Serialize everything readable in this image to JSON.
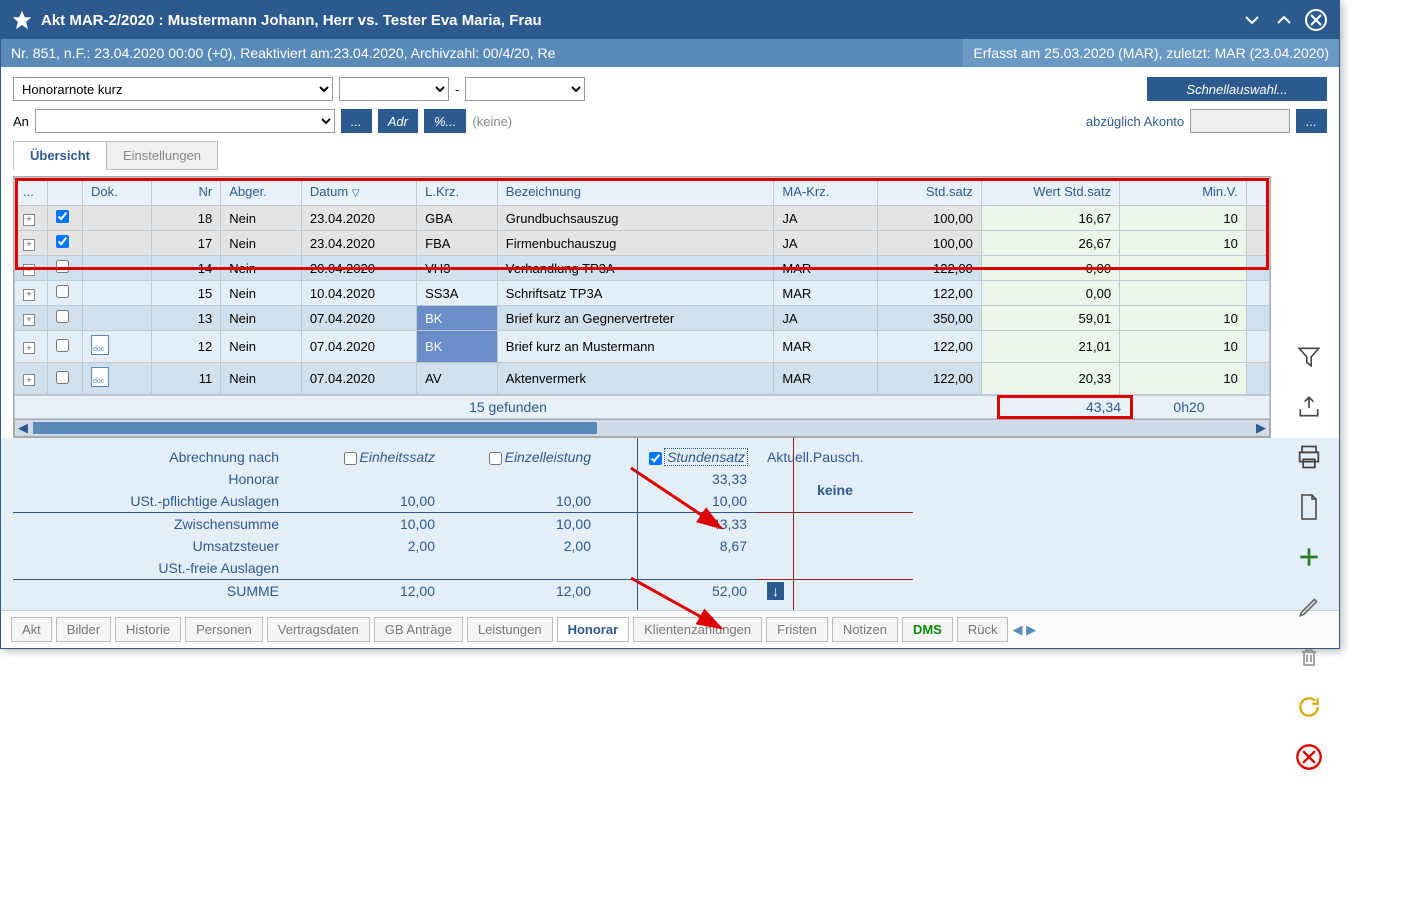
{
  "title": "Akt MAR-2/2020 : Mustermann Johann, Herr vs. Tester Eva Maria, Frau",
  "info_left": "Nr. 851, n.F.: 23.04.2020 00:00 (+0), Reaktiviert am:23.04.2020, Archivzahl: 00/4/20, Re",
  "info_right": "Erfasst am 25.03.2020 (MAR), zuletzt: MAR (23.04.2020)",
  "toolbar": {
    "type_value": "Honorarnote kurz",
    "an_label": "An",
    "dots_btn": "...",
    "adr_btn": "Adr",
    "pct_btn": "%...",
    "none_label": "(keine)",
    "akonto_label": "abzüglich Akonto",
    "schnell_btn": "Schnellauswahl..."
  },
  "tabs": {
    "overview": "Übersicht",
    "settings": "Einstellungen"
  },
  "columns": {
    "dok": "Dok.",
    "nr": "Nr",
    "abger": "Abger.",
    "datum": "Datum",
    "lkrz": "L.Krz.",
    "bez": "Bezeichnung",
    "makrz": "MA-Krz.",
    "std": "Std.satz",
    "wert": "Wert Std.satz",
    "minv": "Min.V."
  },
  "rows": [
    {
      "chk": true,
      "nr": "18",
      "abger": "Nein",
      "datum": "23.04.2020",
      "lkrz": "GBA",
      "bez": "Grundbuchsauszug",
      "makrz": "JA",
      "std": "100,00",
      "wert": "16,67",
      "minv": "10",
      "hilite": true
    },
    {
      "chk": true,
      "nr": "17",
      "abger": "Nein",
      "datum": "23.04.2020",
      "lkrz": "FBA",
      "bez": "Firmenbuchauszug",
      "makrz": "JA",
      "std": "100,00",
      "wert": "26,67",
      "minv": "10",
      "hilite": true
    },
    {
      "chk": false,
      "nr": "14",
      "abger": "Nein",
      "datum": "20.04.2020",
      "lkrz": "VH3",
      "bez": "Verhandlung TP3A",
      "makrz": "MAR",
      "std": "122,00",
      "wert": "0,00",
      "minv": ""
    },
    {
      "chk": false,
      "nr": "15",
      "abger": "Nein",
      "datum": "10.04.2020",
      "lkrz": "SS3A",
      "bez": "Schriftsatz TP3A",
      "makrz": "MAR",
      "std": "122,00",
      "wert": "0,00",
      "minv": ""
    },
    {
      "chk": false,
      "nr": "13",
      "abger": "Nein",
      "datum": "07.04.2020",
      "lkrz": "BK",
      "bez": "Brief kurz an Gegnervertreter",
      "makrz": "JA",
      "std": "350,00",
      "wert": "59,01",
      "minv": "10",
      "bluecell": true
    },
    {
      "chk": false,
      "nr": "12",
      "abger": "Nein",
      "datum": "07.04.2020",
      "lkrz": "BK",
      "bez": "Brief kurz an Mustermann",
      "makrz": "MAR",
      "std": "122,00",
      "wert": "21,01",
      "minv": "10",
      "bluecell": true,
      "docicon": true
    },
    {
      "chk": false,
      "nr": "11",
      "abger": "Nein",
      "datum": "07.04.2020",
      "lkrz": "AV",
      "bez": "Aktenvermerk",
      "makrz": "MAR",
      "std": "122,00",
      "wert": "20,33",
      "minv": "10",
      "docicon": true
    }
  ],
  "summary": {
    "found": "15 gefunden",
    "total_wert": "43,34",
    "total_time": "0h20"
  },
  "calc": {
    "header_label": "Abrechnung nach",
    "einheit": "Einheitssatz",
    "einzel": "Einzelleistung",
    "stunden": "Stundensatz",
    "aktuell": "Aktuell.Pausch.",
    "keine": "keine",
    "rows": {
      "honorar": {
        "lbl": "Honorar",
        "a": "",
        "b": "",
        "c": "33,33"
      },
      "auslagen": {
        "lbl": "USt.-pflichtige Auslagen",
        "a": "10,00",
        "b": "10,00",
        "c": "10,00"
      },
      "zwsum": {
        "lbl": "Zwischensumme",
        "a": "10,00",
        "b": "10,00",
        "c": "43,33"
      },
      "ust": {
        "lbl": "Umsatzsteuer",
        "a": "2,00",
        "b": "2,00",
        "c": "8,67"
      },
      "frei": {
        "lbl": "USt.-freie Auslagen",
        "a": "",
        "b": "",
        "c": ""
      },
      "summe": {
        "lbl": "SUMME",
        "a": "12,00",
        "b": "12,00",
        "c": "52,00"
      }
    }
  },
  "bottom_tabs": [
    "Akt",
    "Bilder",
    "Historie",
    "Personen",
    "Vertragsdaten",
    "GB Anträge",
    "Leistungen",
    "Honorar",
    "Klientenzahlungen",
    "Fristen",
    "Notizen",
    "DMS",
    "Rück"
  ],
  "bottom_active": "Honorar",
  "bottom_green": "DMS",
  "colors": {
    "redbox": "#d00",
    "accent": "#2d5a8e",
    "arrow": "#d00"
  }
}
